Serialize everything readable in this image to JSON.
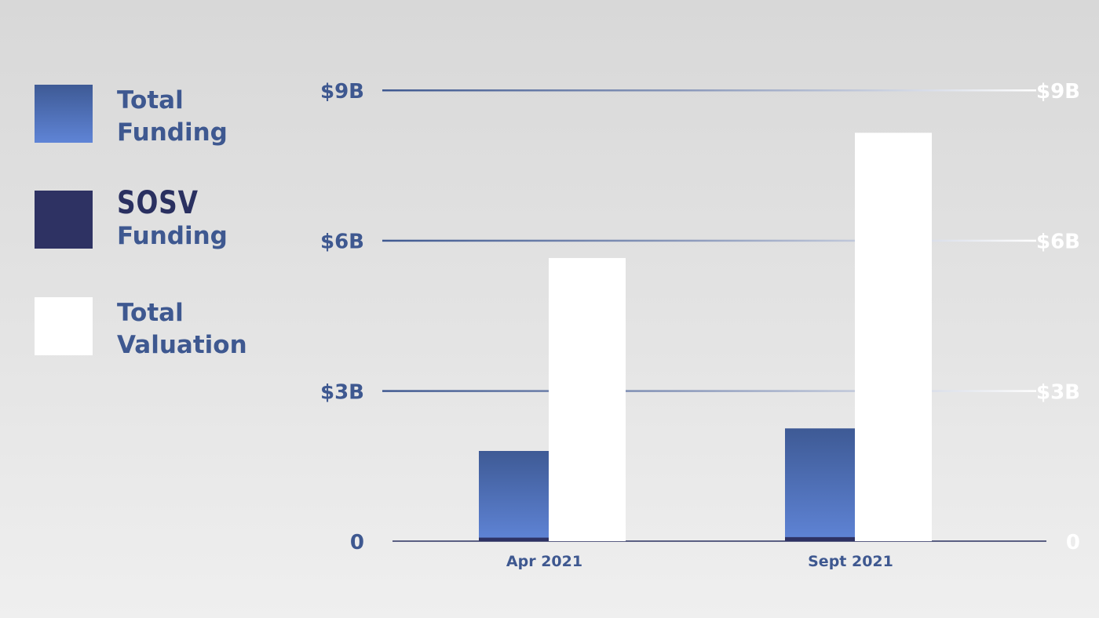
{
  "legend": {
    "items": [
      {
        "line1": "Total",
        "line2": "Funding",
        "color": "#5b7fd0",
        "color_top": "#3e5a95"
      },
      {
        "logo": "SOSV",
        "line2": "Funding",
        "color": "#2e3263"
      },
      {
        "line1": "Total",
        "line2": "Valuation",
        "color": "#ffffff"
      }
    ]
  },
  "chart_data": {
    "type": "bar",
    "categories": [
      "Apr 2021",
      "Sept 2021"
    ],
    "series": [
      {
        "name": "Total Funding",
        "values": [
          1.8,
          2.25
        ],
        "color": "#5b7fd0"
      },
      {
        "name": "SOSV Funding",
        "values": [
          0.07,
          0.08
        ],
        "color": "#2e3263"
      },
      {
        "name": "Total Valuation",
        "values": [
          5.65,
          8.15
        ],
        "color": "#ffffff"
      }
    ],
    "y_ticks": [
      {
        "value": 0,
        "left": "0",
        "right": "0"
      },
      {
        "value": 3,
        "left": "$3B",
        "right": "$3B"
      },
      {
        "value": 6,
        "left": "$6B",
        "right": "$6B"
      },
      {
        "value": 9,
        "left": "$9B",
        "right": "$9B"
      }
    ],
    "ylim": [
      0,
      9
    ],
    "grid": true,
    "legend_position": "left",
    "xlabel": "",
    "ylabel": ""
  }
}
